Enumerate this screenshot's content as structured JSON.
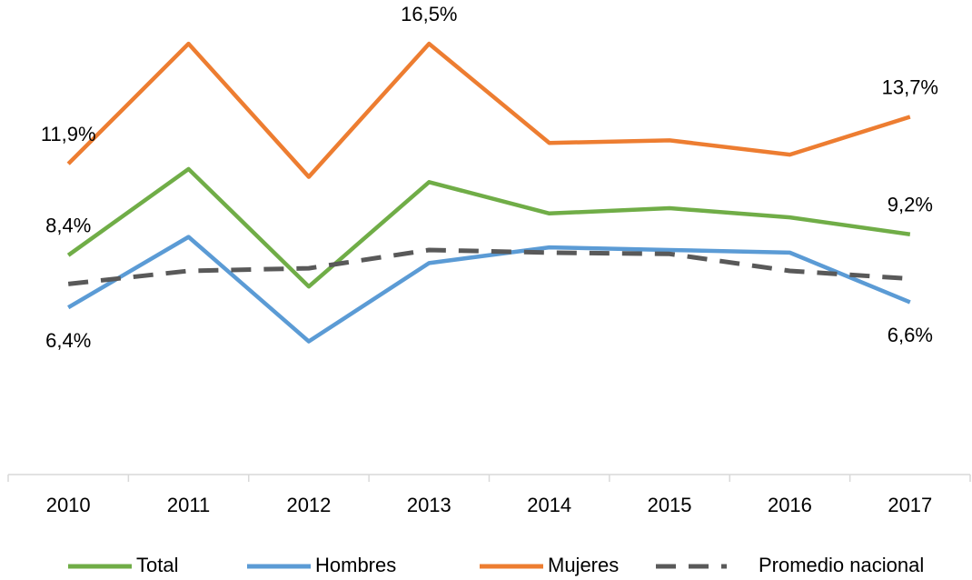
{
  "chart_data": {
    "type": "line",
    "categories": [
      "2010",
      "2011",
      "2012",
      "2013",
      "2014",
      "2015",
      "2016",
      "2017"
    ],
    "ylim": [
      0,
      18
    ],
    "legend": "bottom",
    "series": [
      {
        "name": "Total",
        "color": "#70ad47",
        "style": "solid",
        "values": [
          8.4,
          11.7,
          7.2,
          11.2,
          10.0,
          10.2,
          9.85,
          9.2
        ],
        "value_labels": [
          "8,4%",
          null,
          null,
          null,
          null,
          null,
          null,
          "9,2%"
        ]
      },
      {
        "name": "Hombres",
        "color": "#5b9bd5",
        "style": "solid",
        "values": [
          6.4,
          9.1,
          5.1,
          8.1,
          8.7,
          8.6,
          8.5,
          6.6
        ],
        "value_labels": [
          "6,4%",
          null,
          null,
          null,
          null,
          null,
          null,
          "6,6%"
        ]
      },
      {
        "name": "Mujeres",
        "color": "#ed7d31",
        "style": "solid",
        "values": [
          11.9,
          16.5,
          11.4,
          16.5,
          12.7,
          12.8,
          12.25,
          13.7
        ],
        "value_labels": [
          "11,9%",
          null,
          null,
          "16,5%",
          null,
          null,
          null,
          "13,7%"
        ]
      },
      {
        "name": "Promedio nacional",
        "color": "#595959",
        "style": "dashed",
        "values": [
          7.3,
          7.8,
          7.9,
          8.6,
          8.5,
          8.45,
          7.8,
          7.5
        ]
      }
    ]
  }
}
